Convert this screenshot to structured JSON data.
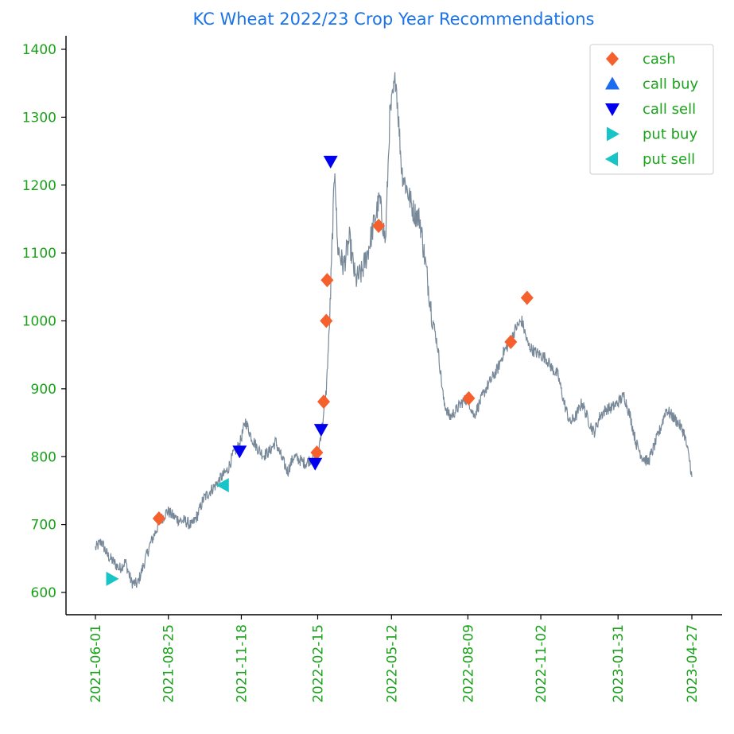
{
  "chart_data": {
    "type": "line",
    "title": "KC  Wheat 2022/23 Crop Year Recommendations",
    "xlabel": "",
    "ylabel": "",
    "x_range": [
      "2021-06-01",
      "2023-04-27"
    ],
    "ylim": [
      570,
      1420
    ],
    "x_ticks": [
      "2021-06-01",
      "2021-08-25",
      "2021-11-18",
      "2022-02-15",
      "2022-05-12",
      "2022-08-09",
      "2022-11-02",
      "2023-01-31",
      "2023-04-27"
    ],
    "y_ticks": [
      600,
      700,
      800,
      900,
      1000,
      1100,
      1200,
      1300,
      1400
    ],
    "grid": false,
    "legend_position": "top-right",
    "colors": {
      "price_line": "#778899",
      "cash": "#f5602d",
      "call_buy": "#1a6bf0",
      "call_sell": "#0000ee",
      "put_buy": "#17c4c8",
      "put_sell": "#17c4c8",
      "title": "#1a73e8",
      "tick_text": "#1aa31a"
    },
    "price_series": {
      "name": "price",
      "points": [
        [
          "2021-06-01",
          665
        ],
        [
          "2021-06-08",
          675
        ],
        [
          "2021-06-15",
          655
        ],
        [
          "2021-06-22",
          645
        ],
        [
          "2021-06-29",
          635
        ],
        [
          "2021-07-06",
          645
        ],
        [
          "2021-07-13",
          615
        ],
        [
          "2021-07-20",
          612
        ],
        [
          "2021-07-27",
          640
        ],
        [
          "2021-08-03",
          668
        ],
        [
          "2021-08-10",
          690
        ],
        [
          "2021-08-17",
          708
        ],
        [
          "2021-08-24",
          720
        ],
        [
          "2021-08-31",
          712
        ],
        [
          "2021-09-07",
          706
        ],
        [
          "2021-09-14",
          705
        ],
        [
          "2021-09-21",
          698
        ],
        [
          "2021-09-28",
          714
        ],
        [
          "2021-10-05",
          738
        ],
        [
          "2021-10-12",
          748
        ],
        [
          "2021-10-19",
          758
        ],
        [
          "2021-10-26",
          770
        ],
        [
          "2021-11-02",
          780
        ],
        [
          "2021-11-09",
          805
        ],
        [
          "2021-11-16",
          818
        ],
        [
          "2021-11-23",
          852
        ],
        [
          "2021-11-30",
          828
        ],
        [
          "2021-12-07",
          812
        ],
        [
          "2021-12-14",
          802
        ],
        [
          "2021-12-21",
          808
        ],
        [
          "2021-12-28",
          822
        ],
        [
          "2022-01-04",
          798
        ],
        [
          "2022-01-11",
          778
        ],
        [
          "2022-01-18",
          800
        ],
        [
          "2022-01-25",
          795
        ],
        [
          "2022-02-01",
          790
        ],
        [
          "2022-02-08",
          798
        ],
        [
          "2022-02-15",
          803
        ],
        [
          "2022-02-22",
          860
        ],
        [
          "2022-02-25",
          898
        ],
        [
          "2022-03-01",
          1000
        ],
        [
          "2022-03-04",
          1120
        ],
        [
          "2022-03-07",
          1230
        ],
        [
          "2022-03-10",
          1110
        ],
        [
          "2022-03-17",
          1080
        ],
        [
          "2022-03-24",
          1120
        ],
        [
          "2022-03-31",
          1060
        ],
        [
          "2022-04-07",
          1070
        ],
        [
          "2022-04-14",
          1100
        ],
        [
          "2022-04-21",
          1140
        ],
        [
          "2022-04-28",
          1180
        ],
        [
          "2022-05-05",
          1115
        ],
        [
          "2022-05-10",
          1300
        ],
        [
          "2022-05-17",
          1360
        ],
        [
          "2022-05-24",
          1220
        ],
        [
          "2022-05-31",
          1190
        ],
        [
          "2022-06-07",
          1160
        ],
        [
          "2022-06-14",
          1150
        ],
        [
          "2022-06-21",
          1080
        ],
        [
          "2022-06-28",
          1010
        ],
        [
          "2022-07-05",
          960
        ],
        [
          "2022-07-12",
          880
        ],
        [
          "2022-07-19",
          858
        ],
        [
          "2022-07-26",
          868
        ],
        [
          "2022-08-02",
          880
        ],
        [
          "2022-08-09",
          886
        ],
        [
          "2022-08-16",
          860
        ],
        [
          "2022-08-23",
          880
        ],
        [
          "2022-08-30",
          900
        ],
        [
          "2022-09-06",
          915
        ],
        [
          "2022-09-13",
          930
        ],
        [
          "2022-09-20",
          955
        ],
        [
          "2022-09-27",
          968
        ],
        [
          "2022-10-04",
          990
        ],
        [
          "2022-10-11",
          1000
        ],
        [
          "2022-10-18",
          965
        ],
        [
          "2022-10-25",
          955
        ],
        [
          "2022-11-01",
          950
        ],
        [
          "2022-11-08",
          945
        ],
        [
          "2022-11-15",
          930
        ],
        [
          "2022-11-22",
          920
        ],
        [
          "2022-11-29",
          880
        ],
        [
          "2022-12-06",
          850
        ],
        [
          "2022-12-13",
          860
        ],
        [
          "2022-12-20",
          880
        ],
        [
          "2022-12-27",
          855
        ],
        [
          "2023-01-03",
          835
        ],
        [
          "2023-01-10",
          860
        ],
        [
          "2023-01-17",
          870
        ],
        [
          "2023-01-24",
          872
        ],
        [
          "2023-01-31",
          880
        ],
        [
          "2023-02-07",
          890
        ],
        [
          "2023-02-14",
          860
        ],
        [
          "2023-02-21",
          820
        ],
        [
          "2023-02-28",
          800
        ],
        [
          "2023-03-07",
          792
        ],
        [
          "2023-03-14",
          815
        ],
        [
          "2023-03-21",
          840
        ],
        [
          "2023-03-28",
          870
        ],
        [
          "2023-04-04",
          860
        ],
        [
          "2023-04-11",
          850
        ],
        [
          "2023-04-18",
          835
        ],
        [
          "2023-04-25",
          790
        ],
        [
          "2023-04-27",
          770
        ]
      ]
    },
    "series": [
      {
        "name": "cash",
        "marker": "diamond",
        "points": [
          [
            "2021-08-14",
            709
          ],
          [
            "2022-02-14",
            806
          ],
          [
            "2022-02-22",
            881
          ],
          [
            "2022-02-25",
            1000
          ],
          [
            "2022-02-26",
            1060
          ],
          [
            "2022-04-27",
            1140
          ],
          [
            "2022-08-10",
            886
          ],
          [
            "2022-09-28",
            969
          ],
          [
            "2022-10-17",
            1034
          ]
        ]
      },
      {
        "name": "call buy",
        "marker": "triangle-up",
        "points": []
      },
      {
        "name": "call sell",
        "marker": "triangle-down",
        "points": [
          [
            "2021-11-16",
            808
          ],
          [
            "2022-02-12",
            790
          ],
          [
            "2022-02-19",
            840
          ],
          [
            "2022-03-02",
            1235
          ]
        ]
      },
      {
        "name": "put buy",
        "marker": "triangle-right",
        "points": [
          [
            "2021-06-20",
            620
          ]
        ]
      },
      {
        "name": "put sell",
        "marker": "triangle-left",
        "points": [
          [
            "2021-10-28",
            758
          ]
        ]
      }
    ]
  }
}
